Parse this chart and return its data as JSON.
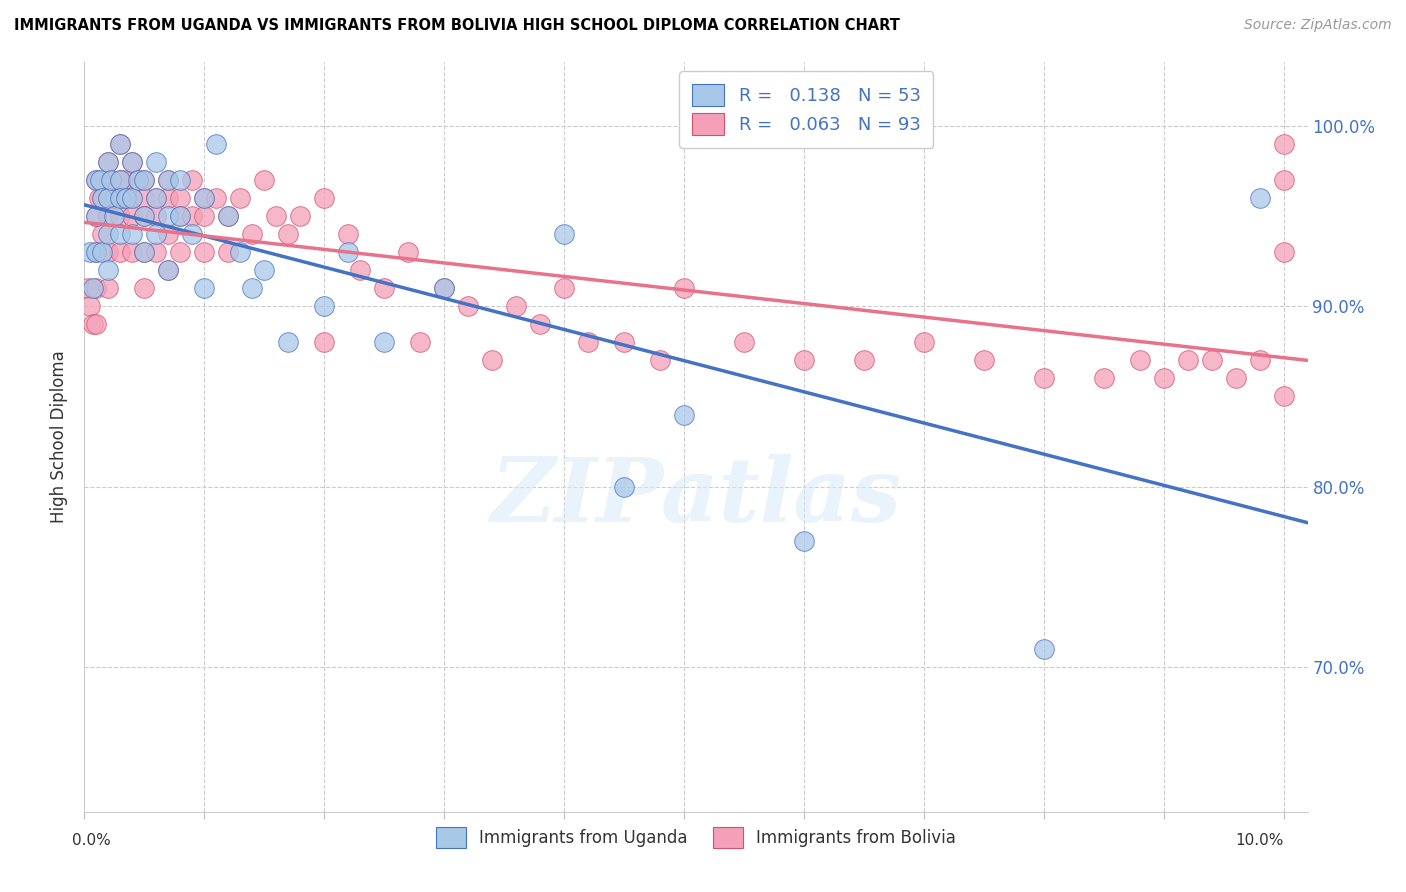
{
  "title": "IMMIGRANTS FROM UGANDA VS IMMIGRANTS FROM BOLIVIA HIGH SCHOOL DIPLOMA CORRELATION CHART",
  "source": "Source: ZipAtlas.com",
  "ylabel": "High School Diploma",
  "xlim": [
    0.0,
    0.102
  ],
  "ylim": [
    0.62,
    1.035
  ],
  "legend_R1": "0.138",
  "legend_N1": "53",
  "legend_R2": "0.063",
  "legend_N2": "93",
  "color_uganda": "#a8c8e8",
  "color_bolivia": "#f4a0b8",
  "color_uganda_line": "#4472c4",
  "color_bolivia_line": "#e8728a",
  "color_uganda_edge": "#4472c4",
  "color_bolivia_edge": "#d45070",
  "watermark_text": "ZIPatlas",
  "legend1_label": "Immigrants from Uganda",
  "legend2_label": "Immigrants from Bolivia",
  "uganda_x": [
    0.0005,
    0.0007,
    0.001,
    0.001,
    0.001,
    0.0013,
    0.0015,
    0.0015,
    0.002,
    0.002,
    0.002,
    0.002,
    0.0022,
    0.0025,
    0.003,
    0.003,
    0.003,
    0.003,
    0.0035,
    0.004,
    0.004,
    0.004,
    0.0045,
    0.005,
    0.005,
    0.005,
    0.006,
    0.006,
    0.006,
    0.007,
    0.007,
    0.007,
    0.008,
    0.008,
    0.009,
    0.01,
    0.01,
    0.011,
    0.012,
    0.013,
    0.014,
    0.015,
    0.017,
    0.02,
    0.022,
    0.025,
    0.03,
    0.04,
    0.045,
    0.05,
    0.06,
    0.08,
    0.098
  ],
  "uganda_y": [
    0.93,
    0.91,
    0.97,
    0.95,
    0.93,
    0.97,
    0.96,
    0.93,
    0.98,
    0.96,
    0.94,
    0.92,
    0.97,
    0.95,
    0.99,
    0.97,
    0.96,
    0.94,
    0.96,
    0.98,
    0.96,
    0.94,
    0.97,
    0.97,
    0.95,
    0.93,
    0.98,
    0.96,
    0.94,
    0.97,
    0.95,
    0.92,
    0.97,
    0.95,
    0.94,
    0.96,
    0.91,
    0.99,
    0.95,
    0.93,
    0.91,
    0.92,
    0.88,
    0.9,
    0.93,
    0.88,
    0.91,
    0.94,
    0.8,
    0.84,
    0.77,
    0.71,
    0.96
  ],
  "bolivia_x": [
    0.0003,
    0.0005,
    0.0007,
    0.001,
    0.001,
    0.001,
    0.001,
    0.001,
    0.0012,
    0.0015,
    0.0015,
    0.002,
    0.002,
    0.002,
    0.002,
    0.002,
    0.0022,
    0.0025,
    0.003,
    0.003,
    0.003,
    0.003,
    0.003,
    0.0032,
    0.0035,
    0.004,
    0.004,
    0.004,
    0.004,
    0.0045,
    0.005,
    0.005,
    0.005,
    0.005,
    0.005,
    0.006,
    0.006,
    0.006,
    0.007,
    0.007,
    0.007,
    0.007,
    0.008,
    0.008,
    0.008,
    0.009,
    0.009,
    0.01,
    0.01,
    0.01,
    0.011,
    0.012,
    0.012,
    0.013,
    0.014,
    0.015,
    0.016,
    0.017,
    0.018,
    0.02,
    0.02,
    0.022,
    0.023,
    0.025,
    0.027,
    0.028,
    0.03,
    0.032,
    0.034,
    0.036,
    0.038,
    0.04,
    0.042,
    0.045,
    0.048,
    0.05,
    0.055,
    0.06,
    0.065,
    0.07,
    0.075,
    0.08,
    0.085,
    0.088,
    0.09,
    0.092,
    0.094,
    0.096,
    0.098,
    0.1,
    0.1,
    0.1,
    0.1
  ],
  "bolivia_y": [
    0.91,
    0.9,
    0.89,
    0.97,
    0.95,
    0.93,
    0.91,
    0.89,
    0.96,
    0.96,
    0.94,
    0.98,
    0.96,
    0.95,
    0.93,
    0.91,
    0.97,
    0.96,
    0.99,
    0.97,
    0.96,
    0.95,
    0.93,
    0.97,
    0.96,
    0.98,
    0.96,
    0.95,
    0.93,
    0.97,
    0.97,
    0.96,
    0.95,
    0.93,
    0.91,
    0.96,
    0.95,
    0.93,
    0.97,
    0.96,
    0.94,
    0.92,
    0.96,
    0.95,
    0.93,
    0.97,
    0.95,
    0.96,
    0.95,
    0.93,
    0.96,
    0.95,
    0.93,
    0.96,
    0.94,
    0.97,
    0.95,
    0.94,
    0.95,
    0.96,
    0.88,
    0.94,
    0.92,
    0.91,
    0.93,
    0.88,
    0.91,
    0.9,
    0.87,
    0.9,
    0.89,
    0.91,
    0.88,
    0.88,
    0.87,
    0.91,
    0.88,
    0.87,
    0.87,
    0.88,
    0.87,
    0.86,
    0.86,
    0.87,
    0.86,
    0.87,
    0.87,
    0.86,
    0.87,
    0.99,
    0.97,
    0.93,
    0.85
  ]
}
